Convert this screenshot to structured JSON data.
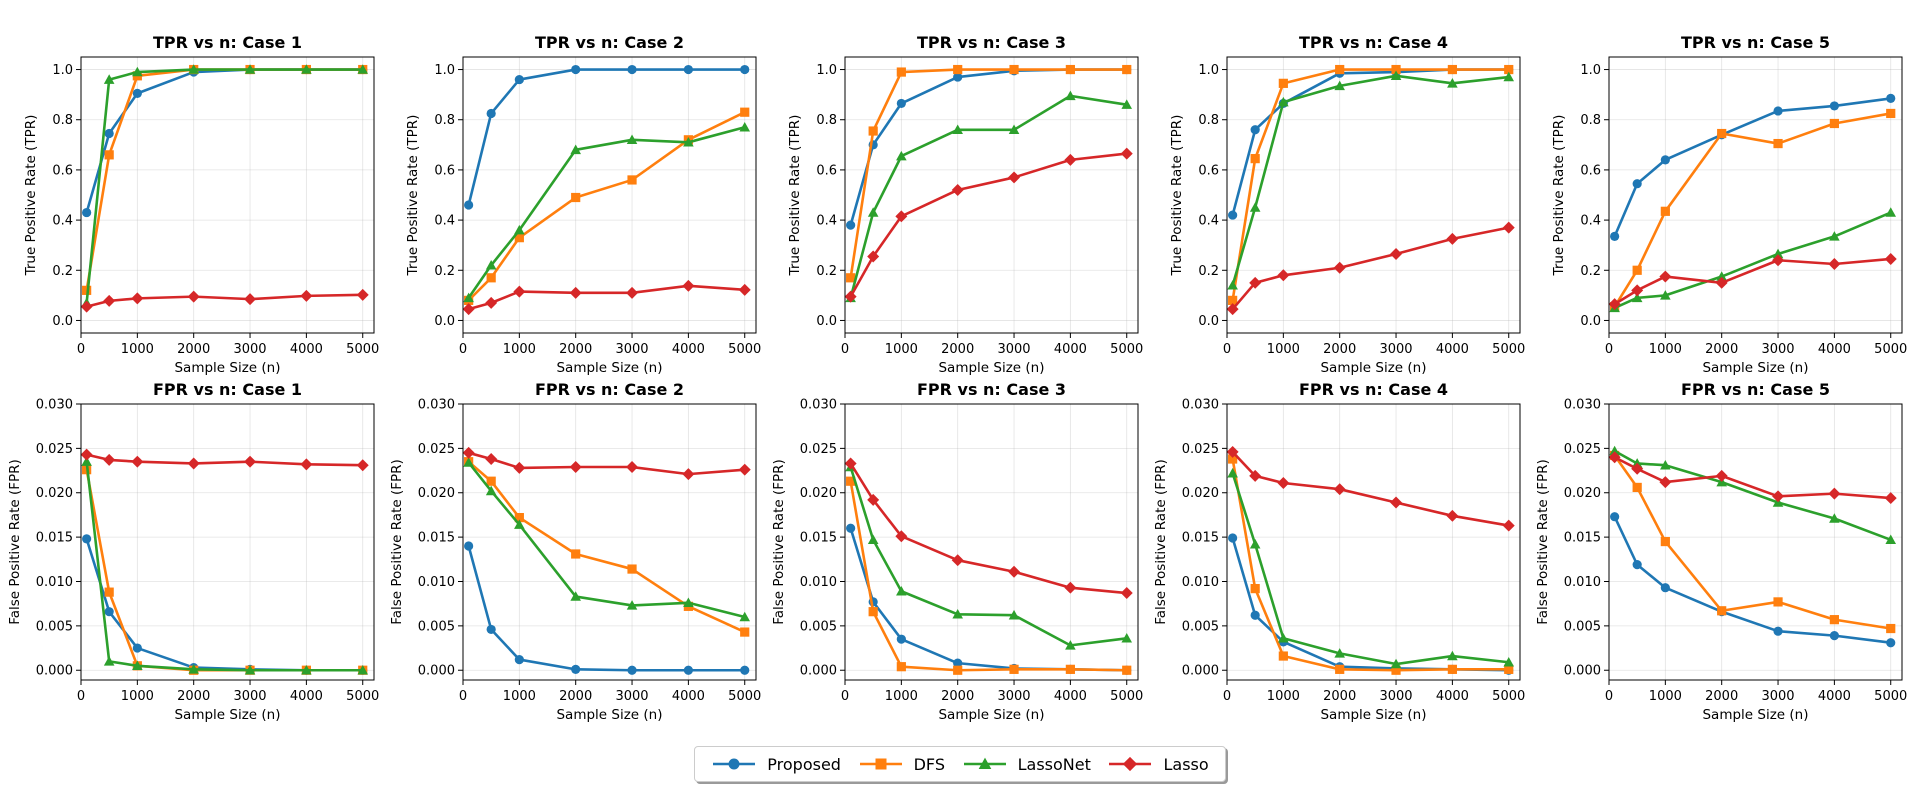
{
  "colors": {
    "Proposed": "#1f77b4",
    "DFS": "#ff7f0e",
    "LassoNet": "#2ca02c",
    "Lasso": "#d62728"
  },
  "legend": [
    {
      "name": "Proposed",
      "marker": "circle"
    },
    {
      "name": "DFS",
      "marker": "square"
    },
    {
      "name": "LassoNet",
      "marker": "triangle"
    },
    {
      "name": "Lasso",
      "marker": "diamond"
    }
  ],
  "chart_data": [
    {
      "type": "line",
      "title": "TPR vs n: Case 1",
      "xlabel": "Sample Size (n)",
      "ylabel": "True Positive Rate (TPR)",
      "x": [
        100,
        500,
        1000,
        2000,
        3000,
        4000,
        5000
      ],
      "xlim": [
        0,
        5200
      ],
      "ylim": [
        -0.05,
        1.05
      ],
      "xticks": [
        "0",
        "1000",
        "2000",
        "3000",
        "4000",
        "5000"
      ],
      "yticks": [
        "0.0",
        "0.2",
        "0.4",
        "0.6",
        "0.8",
        "1.0"
      ],
      "series": [
        {
          "name": "Proposed",
          "values": [
            0.43,
            0.745,
            0.905,
            0.99,
            1.0,
            1.0,
            1.0
          ]
        },
        {
          "name": "DFS",
          "values": [
            0.12,
            0.66,
            0.975,
            1.0,
            1.0,
            1.0,
            1.0
          ]
        },
        {
          "name": "LassoNet",
          "values": [
            0.07,
            0.96,
            0.99,
            1.0,
            1.0,
            1.0,
            1.0
          ]
        },
        {
          "name": "Lasso",
          "values": [
            0.055,
            0.078,
            0.088,
            0.095,
            0.085,
            0.098,
            0.102
          ]
        }
      ]
    },
    {
      "type": "line",
      "title": "TPR vs n: Case 2",
      "xlabel": "Sample Size (n)",
      "ylabel": "True Positive Rate (TPR)",
      "x": [
        100,
        500,
        1000,
        2000,
        3000,
        4000,
        5000
      ],
      "xlim": [
        0,
        5200
      ],
      "ylim": [
        -0.05,
        1.05
      ],
      "xticks": [
        "0",
        "1000",
        "2000",
        "3000",
        "4000",
        "5000"
      ],
      "yticks": [
        "0.0",
        "0.2",
        "0.4",
        "0.6",
        "0.8",
        "1.0"
      ],
      "series": [
        {
          "name": "Proposed",
          "values": [
            0.46,
            0.825,
            0.96,
            1.0,
            1.0,
            1.0,
            1.0
          ]
        },
        {
          "name": "DFS",
          "values": [
            0.08,
            0.17,
            0.33,
            0.49,
            0.56,
            0.72,
            0.83
          ]
        },
        {
          "name": "LassoNet",
          "values": [
            0.09,
            0.22,
            0.36,
            0.68,
            0.72,
            0.71,
            0.77
          ]
        },
        {
          "name": "Lasso",
          "values": [
            0.045,
            0.07,
            0.115,
            0.11,
            0.11,
            0.138,
            0.122
          ]
        }
      ]
    },
    {
      "type": "line",
      "title": "TPR vs n: Case 3",
      "xlabel": "Sample Size (n)",
      "ylabel": "True Positive Rate (TPR)",
      "x": [
        100,
        500,
        1000,
        2000,
        3000,
        4000,
        5000
      ],
      "xlim": [
        0,
        5200
      ],
      "ylim": [
        -0.05,
        1.05
      ],
      "xticks": [
        "0",
        "1000",
        "2000",
        "3000",
        "4000",
        "5000"
      ],
      "yticks": [
        "0.0",
        "0.2",
        "0.4",
        "0.6",
        "0.8",
        "1.0"
      ],
      "series": [
        {
          "name": "Proposed",
          "values": [
            0.38,
            0.7,
            0.865,
            0.97,
            0.995,
            1.0,
            1.0
          ]
        },
        {
          "name": "DFS",
          "values": [
            0.17,
            0.755,
            0.99,
            1.0,
            1.0,
            1.0,
            1.0
          ]
        },
        {
          "name": "LassoNet",
          "values": [
            0.09,
            0.43,
            0.655,
            0.76,
            0.76,
            0.895,
            0.86
          ]
        },
        {
          "name": "Lasso",
          "values": [
            0.095,
            0.255,
            0.415,
            0.52,
            0.57,
            0.64,
            0.665
          ]
        }
      ]
    },
    {
      "type": "line",
      "title": "TPR vs n: Case 4",
      "xlabel": "Sample Size (n)",
      "ylabel": "True Positive Rate (TPR)",
      "x": [
        100,
        500,
        1000,
        2000,
        3000,
        4000,
        5000
      ],
      "xlim": [
        0,
        5200
      ],
      "ylim": [
        -0.05,
        1.05
      ],
      "xticks": [
        "0",
        "1000",
        "2000",
        "3000",
        "4000",
        "5000"
      ],
      "yticks": [
        "0.0",
        "0.2",
        "0.4",
        "0.6",
        "0.8",
        "1.0"
      ],
      "series": [
        {
          "name": "Proposed",
          "values": [
            0.42,
            0.76,
            0.865,
            0.985,
            0.99,
            1.0,
            1.0
          ]
        },
        {
          "name": "DFS",
          "values": [
            0.08,
            0.645,
            0.945,
            1.0,
            1.0,
            1.0,
            1.0
          ]
        },
        {
          "name": "LassoNet",
          "values": [
            0.14,
            0.45,
            0.87,
            0.935,
            0.975,
            0.945,
            0.97
          ]
        },
        {
          "name": "Lasso",
          "values": [
            0.045,
            0.15,
            0.18,
            0.21,
            0.265,
            0.325,
            0.37
          ]
        }
      ]
    },
    {
      "type": "line",
      "title": "TPR vs n: Case 5",
      "xlabel": "Sample Size (n)",
      "ylabel": "True Positive Rate (TPR)",
      "x": [
        100,
        500,
        1000,
        2000,
        3000,
        4000,
        5000
      ],
      "xlim": [
        0,
        5200
      ],
      "ylim": [
        -0.05,
        1.05
      ],
      "xticks": [
        "0",
        "1000",
        "2000",
        "3000",
        "4000",
        "5000"
      ],
      "yticks": [
        "0.0",
        "0.2",
        "0.4",
        "0.6",
        "0.8",
        "1.0"
      ],
      "series": [
        {
          "name": "Proposed",
          "values": [
            0.335,
            0.545,
            0.64,
            0.74,
            0.835,
            0.855,
            0.885
          ]
        },
        {
          "name": "DFS",
          "values": [
            0.055,
            0.2,
            0.435,
            0.745,
            0.705,
            0.785,
            0.825
          ]
        },
        {
          "name": "LassoNet",
          "values": [
            0.05,
            0.09,
            0.1,
            0.175,
            0.265,
            0.335,
            0.43
          ]
        },
        {
          "name": "Lasso",
          "values": [
            0.065,
            0.12,
            0.175,
            0.15,
            0.24,
            0.225,
            0.245
          ]
        }
      ]
    },
    {
      "type": "line",
      "title": "FPR vs n: Case 1",
      "xlabel": "Sample Size (n)",
      "ylabel": "False Positive Rate (FPR)",
      "x": [
        100,
        500,
        1000,
        2000,
        3000,
        4000,
        5000
      ],
      "xlim": [
        0,
        5200
      ],
      "ylim": [
        -0.0011,
        0.03
      ],
      "xticks": [
        "0",
        "1000",
        "2000",
        "3000",
        "4000",
        "5000"
      ],
      "yticks": [
        "0.000",
        "0.005",
        "0.010",
        "0.015",
        "0.020",
        "0.025",
        "0.030"
      ],
      "series": [
        {
          "name": "Proposed",
          "values": [
            0.0148,
            0.0066,
            0.0025,
            0.0003,
            0.0001,
            0.0,
            0.0
          ]
        },
        {
          "name": "DFS",
          "values": [
            0.0226,
            0.0088,
            0.0005,
            0.0,
            0.0,
            0.0,
            0.0
          ]
        },
        {
          "name": "LassoNet",
          "values": [
            0.0235,
            0.001,
            0.0005,
            0.0001,
            0.0,
            0.0,
            0.0
          ]
        },
        {
          "name": "Lasso",
          "values": [
            0.0243,
            0.0237,
            0.0235,
            0.0233,
            0.0235,
            0.0232,
            0.0231
          ]
        }
      ]
    },
    {
      "type": "line",
      "title": "FPR vs n: Case 2",
      "xlabel": "Sample Size (n)",
      "ylabel": "False Positive Rate (FPR)",
      "x": [
        100,
        500,
        1000,
        2000,
        3000,
        4000,
        5000
      ],
      "xlim": [
        0,
        5200
      ],
      "ylim": [
        -0.0011,
        0.03
      ],
      "xticks": [
        "0",
        "1000",
        "2000",
        "3000",
        "4000",
        "5000"
      ],
      "yticks": [
        "0.000",
        "0.005",
        "0.010",
        "0.015",
        "0.020",
        "0.025",
        "0.030"
      ],
      "series": [
        {
          "name": "Proposed",
          "values": [
            0.014,
            0.0046,
            0.0012,
            0.0001,
            0.0,
            0.0,
            0.0
          ]
        },
        {
          "name": "DFS",
          "values": [
            0.0235,
            0.0213,
            0.0172,
            0.0131,
            0.0114,
            0.0072,
            0.0043
          ]
        },
        {
          "name": "LassoNet",
          "values": [
            0.0234,
            0.0202,
            0.0164,
            0.0083,
            0.0073,
            0.0076,
            0.006
          ]
        },
        {
          "name": "Lasso",
          "values": [
            0.0245,
            0.0238,
            0.0228,
            0.0229,
            0.0229,
            0.0221,
            0.0226
          ]
        }
      ]
    },
    {
      "type": "line",
      "title": "FPR vs n: Case 3",
      "xlabel": "Sample Size (n)",
      "ylabel": "False Positive Rate (FPR)",
      "x": [
        100,
        500,
        1000,
        2000,
        3000,
        4000,
        5000
      ],
      "xlim": [
        0,
        5200
      ],
      "ylim": [
        -0.0011,
        0.03
      ],
      "xticks": [
        "0",
        "1000",
        "2000",
        "3000",
        "4000",
        "5000"
      ],
      "yticks": [
        "0.000",
        "0.005",
        "0.010",
        "0.015",
        "0.020",
        "0.025",
        "0.030"
      ],
      "series": [
        {
          "name": "Proposed",
          "values": [
            0.016,
            0.0077,
            0.0035,
            0.0008,
            0.0002,
            0.0001,
            0.0
          ]
        },
        {
          "name": "DFS",
          "values": [
            0.0213,
            0.0066,
            0.0004,
            0.0,
            0.0001,
            0.0001,
            0.0
          ]
        },
        {
          "name": "LassoNet",
          "values": [
            0.0229,
            0.0147,
            0.0089,
            0.0063,
            0.0062,
            0.0028,
            0.0036
          ]
        },
        {
          "name": "Lasso",
          "values": [
            0.0233,
            0.0192,
            0.0151,
            0.0124,
            0.0111,
            0.0093,
            0.0087
          ]
        }
      ]
    },
    {
      "type": "line",
      "title": "FPR vs n: Case 4",
      "xlabel": "Sample Size (n)",
      "ylabel": "False Positive Rate (FPR)",
      "x": [
        100,
        500,
        1000,
        2000,
        3000,
        4000,
        5000
      ],
      "xlim": [
        0,
        5200
      ],
      "ylim": [
        -0.0011,
        0.03
      ],
      "xticks": [
        "0",
        "1000",
        "2000",
        "3000",
        "4000",
        "5000"
      ],
      "yticks": [
        "0.000",
        "0.005",
        "0.010",
        "0.015",
        "0.020",
        "0.025",
        "0.030"
      ],
      "series": [
        {
          "name": "Proposed",
          "values": [
            0.0149,
            0.0062,
            0.0032,
            0.0004,
            0.0002,
            0.0001,
            0.0
          ]
        },
        {
          "name": "DFS",
          "values": [
            0.0238,
            0.0092,
            0.0016,
            0.0001,
            0.0,
            0.0001,
            0.0001
          ]
        },
        {
          "name": "LassoNet",
          "values": [
            0.0222,
            0.0142,
            0.0036,
            0.0019,
            0.0007,
            0.0016,
            0.0009
          ]
        },
        {
          "name": "Lasso",
          "values": [
            0.0246,
            0.0219,
            0.0211,
            0.0204,
            0.0189,
            0.0174,
            0.0163
          ]
        }
      ]
    },
    {
      "type": "line",
      "title": "FPR vs n: Case 5",
      "xlabel": "Sample Size (n)",
      "ylabel": "False Positive Rate (FPR)",
      "x": [
        100,
        500,
        1000,
        2000,
        3000,
        4000,
        5000
      ],
      "xlim": [
        0,
        5200
      ],
      "ylim": [
        -0.0011,
        0.03
      ],
      "xticks": [
        "0",
        "1000",
        "2000",
        "3000",
        "4000",
        "5000"
      ],
      "yticks": [
        "0.000",
        "0.005",
        "0.010",
        "0.015",
        "0.020",
        "0.025",
        "0.030"
      ],
      "series": [
        {
          "name": "Proposed",
          "values": [
            0.0173,
            0.0119,
            0.0093,
            0.0066,
            0.0044,
            0.0039,
            0.0031
          ]
        },
        {
          "name": "DFS",
          "values": [
            0.0242,
            0.0206,
            0.0145,
            0.0067,
            0.0077,
            0.0057,
            0.0047
          ]
        },
        {
          "name": "LassoNet",
          "values": [
            0.0247,
            0.0233,
            0.0231,
            0.0212,
            0.0189,
            0.0171,
            0.0147
          ]
        },
        {
          "name": "Lasso",
          "values": [
            0.024,
            0.0227,
            0.0212,
            0.0219,
            0.0196,
            0.0199,
            0.0194
          ]
        }
      ]
    }
  ]
}
